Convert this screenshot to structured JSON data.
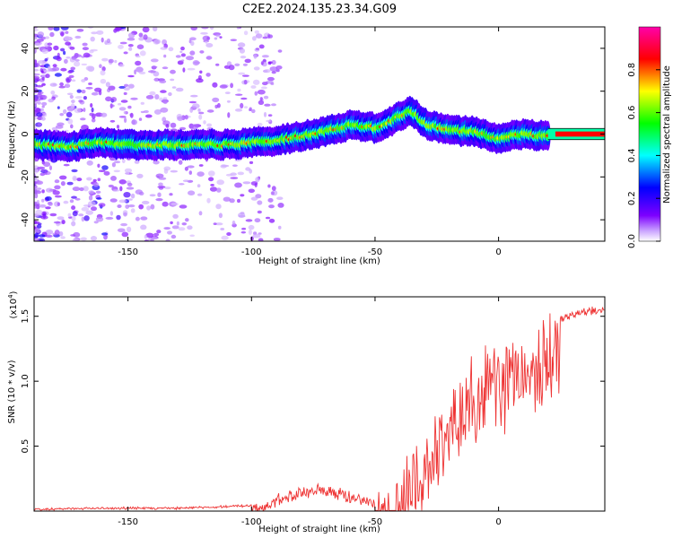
{
  "title": "C2E2.2024.135.23.34.G09",
  "chart_data": [
    {
      "type": "heatmap",
      "xlabel": "Height of straight line (km)",
      "ylabel": "Frequency (Hz)",
      "xlim": [
        -188,
        43
      ],
      "ylim": [
        -50,
        50
      ],
      "x_ticks": [
        -150,
        -100,
        -50,
        0
      ],
      "x_tick_labels": [
        "-150",
        "-100",
        "-50",
        "0"
      ],
      "y_ticks": [
        -40,
        -20,
        0,
        20,
        40
      ],
      "y_tick_labels": [
        "-40",
        "-20",
        "0",
        "20",
        "40"
      ],
      "colorbar": {
        "label": "Normalized spectral amplitude",
        "range": [
          0,
          1
        ],
        "ticks": [
          0.0,
          0.2,
          0.4,
          0.6,
          0.8
        ],
        "tick_labels": [
          "0.0",
          "0.2",
          "0.4",
          "0.6",
          "0.8"
        ],
        "colormap": [
          "#ffffff",
          "#7d00ff",
          "#0000ff",
          "#00ffff",
          "#00ff00",
          "#ffff00",
          "#ff0000",
          "#ff00aa"
        ]
      },
      "ridge": {
        "x": [
          -188,
          -175,
          -160,
          -150,
          -140,
          -130,
          -120,
          -110,
          -100,
          -90,
          -80,
          -70,
          -60,
          -50,
          -45,
          -40,
          -35,
          -30,
          -25,
          -20,
          -10,
          0,
          10,
          20,
          30,
          43
        ],
        "y": [
          -5,
          -6,
          -4,
          -5,
          -5,
          -5,
          -5,
          -5,
          -4,
          -3,
          -1,
          1,
          4,
          3,
          5,
          8,
          11,
          5,
          3,
          2,
          1,
          -2,
          0,
          -1,
          0,
          0
        ]
      },
      "grid": false
    },
    {
      "type": "line",
      "xlabel": "Height of straight line (km)",
      "ylabel": "SNR (10 * v/v)",
      "y_scale_label": "(x10",
      "y_scale_exp": "4",
      "y_scale_close": ")",
      "xlim": [
        -188,
        43
      ],
      "ylim": [
        0,
        1.65
      ],
      "x_ticks": [
        -150,
        -100,
        -50,
        0
      ],
      "x_tick_labels": [
        "-150",
        "-100",
        "-50",
        "0"
      ],
      "y_ticks": [
        0.5,
        1.0,
        1.5
      ],
      "y_tick_labels": [
        "0.5",
        "1.0",
        "1.5"
      ],
      "color": "#ee3333",
      "envelope": {
        "x": [
          -188,
          -160,
          -130,
          -115,
          -100,
          -90,
          -80,
          -70,
          -60,
          -50,
          -45,
          -40,
          -35,
          -30,
          -25,
          -20,
          -15,
          -10,
          -5,
          0,
          5,
          10,
          15,
          20,
          25,
          30,
          35,
          43
        ],
        "y": [
          0.02,
          0.03,
          0.03,
          0.04,
          0.05,
          0.12,
          0.18,
          0.2,
          0.15,
          0.1,
          0.2,
          0.3,
          0.45,
          0.65,
          0.75,
          0.9,
          1.05,
          1.15,
          1.2,
          1.25,
          1.3,
          1.35,
          1.4,
          1.45,
          1.5,
          1.54,
          1.56,
          1.58
        ]
      },
      "grid": false
    }
  ]
}
